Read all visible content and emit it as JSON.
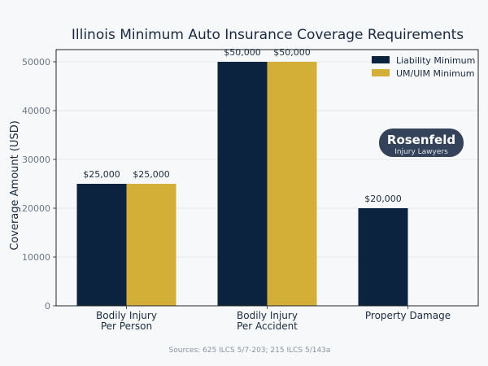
{
  "chart_data": {
    "type": "bar",
    "title": "Illinois Minimum Auto Insurance Coverage Requirements",
    "xlabel": "",
    "ylabel": "Coverage Amount (USD)",
    "categories": [
      "Bodily Injury\nPer Person",
      "Bodily Injury\nPer Accident",
      "Property Damage"
    ],
    "series": [
      {
        "name": "Liability Minimum",
        "values": [
          25000,
          50000,
          20000
        ],
        "labels": [
          "$25,000",
          "$50,000",
          "$20,000"
        ],
        "color": "#0c2340"
      },
      {
        "name": "UM/UIM Minimum",
        "values": [
          25000,
          50000,
          null
        ],
        "labels": [
          "$25,000",
          "$50,000",
          ""
        ],
        "color": "#d4af37"
      }
    ],
    "ylim": [
      0,
      52500
    ],
    "yticks": [
      0,
      10000,
      20000,
      30000,
      40000,
      50000
    ],
    "grid": true,
    "legend": "top-right",
    "source": "Sources: 625 ILCS 5/7-203; 215 ILCS 5/143a"
  },
  "logo": {
    "name": "Rosenfeld",
    "sub": "Injury Lawyers"
  }
}
